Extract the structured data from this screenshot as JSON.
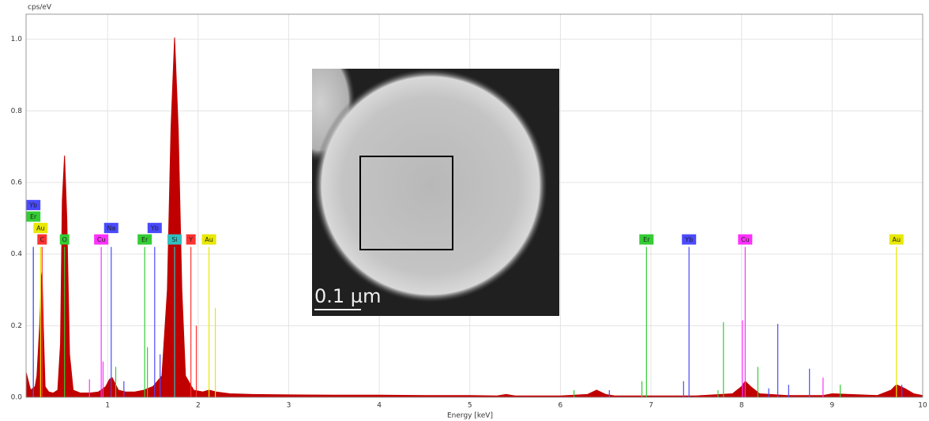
{
  "chart_data": {
    "type": "spectrum",
    "y_label": "cps/eV",
    "x_label": "Energy [keV]",
    "xlim": [
      0.1,
      10
    ],
    "ylim": [
      0,
      1.07
    ],
    "xticks": [
      1,
      2,
      3,
      4,
      5,
      6,
      7,
      8,
      9,
      10
    ],
    "yticks": [
      {
        "value": 0,
        "label": "0.0"
      },
      {
        "value": 0.2,
        "label": "0.2"
      },
      {
        "value": 0.4,
        "label": "0.4"
      },
      {
        "value": 0.6,
        "label": "0.6"
      },
      {
        "value": 0.8,
        "label": "0.8"
      },
      {
        "value": 1,
        "label": "1.0"
      }
    ],
    "grid": true,
    "spectrum": {
      "color": "#c00000",
      "x": [
        0.1,
        0.15,
        0.2,
        0.22,
        0.25,
        0.27,
        0.277,
        0.29,
        0.31,
        0.35,
        0.4,
        0.45,
        0.48,
        0.5,
        0.525,
        0.55,
        0.58,
        0.62,
        0.7,
        0.8,
        0.9,
        0.98,
        1.02,
        1.05,
        1.08,
        1.12,
        1.2,
        1.3,
        1.4,
        1.5,
        1.6,
        1.66,
        1.7,
        1.74,
        1.78,
        1.82,
        1.86,
        1.95,
        2.05,
        2.12,
        2.2,
        2.35,
        2.6,
        3.0,
        3.5,
        4.0,
        4.5,
        5.0,
        5.3,
        5.4,
        5.5,
        6.0,
        6.3,
        6.4,
        6.5,
        6.6,
        7.0,
        7.5,
        7.9,
        8.0,
        8.04,
        8.1,
        8.2,
        8.5,
        8.9,
        9.0,
        9.5,
        9.65,
        9.71,
        9.8,
        9.9,
        10
      ],
      "values": [
        0.07,
        0.02,
        0.03,
        0.06,
        0.2,
        0.34,
        0.35,
        0.2,
        0.03,
        0.015,
        0.012,
        0.02,
        0.15,
        0.55,
        0.675,
        0.5,
        0.12,
        0.02,
        0.012,
        0.012,
        0.015,
        0.03,
        0.05,
        0.055,
        0.04,
        0.02,
        0.015,
        0.015,
        0.02,
        0.03,
        0.06,
        0.3,
        0.75,
        1.005,
        0.75,
        0.3,
        0.06,
        0.02,
        0.015,
        0.02,
        0.015,
        0.01,
        0.008,
        0.007,
        0.006,
        0.006,
        0.005,
        0.005,
        0.004,
        0.008,
        0.004,
        0.004,
        0.008,
        0.02,
        0.008,
        0.004,
        0.004,
        0.004,
        0.01,
        0.03,
        0.045,
        0.03,
        0.01,
        0.005,
        0.005,
        0.01,
        0.005,
        0.02,
        0.035,
        0.025,
        0.01,
        0.005
      ]
    },
    "element_lines": [
      {
        "element": "C",
        "energy": 0.277,
        "height": 0.42,
        "color": "#ff3030"
      },
      {
        "element": "O",
        "energy": 0.525,
        "height": 0.42,
        "color": "#33cc33"
      },
      {
        "element": "Cu",
        "energy": 0.93,
        "height": 0.42,
        "color": "#ff30ff"
      },
      {
        "element": "Na",
        "energy": 1.04,
        "height": 0.42,
        "color": "#4a4aff"
      },
      {
        "element": "Er",
        "energy": 1.41,
        "height": 0.42,
        "color": "#33cc33"
      },
      {
        "element": "Yb",
        "energy": 1.52,
        "height": 0.42,
        "color": "#4a4aff"
      },
      {
        "element": "Si",
        "energy": 1.74,
        "height": 0.42,
        "color": "#30c0c0"
      },
      {
        "element": "Y",
        "energy": 1.92,
        "height": 0.42,
        "color": "#ff3030"
      },
      {
        "element": "Au",
        "energy": 2.12,
        "height": 0.42,
        "color": "#e8e800"
      },
      {
        "element": "Au",
        "energy": 0.26,
        "height": 0.42,
        "color": "#e8e800"
      },
      {
        "element": "Er",
        "energy": 0.18,
        "height": 0.42,
        "color": "#33cc33"
      },
      {
        "element": "Yb",
        "energy": 0.18,
        "height": 0.42,
        "color": "#4a4aff"
      },
      {
        "element": "Er",
        "energy": 6.95,
        "height": 0.42,
        "color": "#33cc33"
      },
      {
        "element": "Yb",
        "energy": 7.42,
        "height": 0.42,
        "color": "#4a4aff"
      },
      {
        "element": "Cu",
        "energy": 8.04,
        "height": 0.42,
        "color": "#ff30ff"
      },
      {
        "element": "Au",
        "energy": 9.71,
        "height": 0.42,
        "color": "#e8e800"
      }
    ],
    "minor_lines": [
      {
        "energy": 0.8,
        "height": 0.05,
        "color": "#ff30ff"
      },
      {
        "energy": 0.95,
        "height": 0.1,
        "color": "#ff30ff"
      },
      {
        "energy": 1.09,
        "height": 0.085,
        "color": "#33cc33"
      },
      {
        "energy": 1.18,
        "height": 0.045,
        "color": "#4a4aff"
      },
      {
        "energy": 1.44,
        "height": 0.14,
        "color": "#33cc33"
      },
      {
        "energy": 1.58,
        "height": 0.12,
        "color": "#4a4aff"
      },
      {
        "energy": 1.98,
        "height": 0.2,
        "color": "#ff3030"
      },
      {
        "energy": 2.19,
        "height": 0.25,
        "color": "#e8e800"
      },
      {
        "energy": 6.15,
        "height": 0.02,
        "color": "#33cc33"
      },
      {
        "energy": 6.54,
        "height": 0.02,
        "color": "#4a4aff"
      },
      {
        "energy": 6.9,
        "height": 0.045,
        "color": "#33cc33"
      },
      {
        "energy": 7.36,
        "height": 0.045,
        "color": "#4a4aff"
      },
      {
        "energy": 7.74,
        "height": 0.02,
        "color": "#33cc33"
      },
      {
        "energy": 7.8,
        "height": 0.21,
        "color": "#33cc33"
      },
      {
        "energy": 8.01,
        "height": 0.215,
        "color": "#ff30ff"
      },
      {
        "energy": 8.18,
        "height": 0.085,
        "color": "#33cc33"
      },
      {
        "energy": 8.3,
        "height": 0.025,
        "color": "#4a4aff"
      },
      {
        "energy": 8.4,
        "height": 0.205,
        "color": "#4a4aff"
      },
      {
        "energy": 8.52,
        "height": 0.035,
        "color": "#4a4aff"
      },
      {
        "energy": 8.75,
        "height": 0.08,
        "color": "#4a4aff"
      },
      {
        "energy": 8.9,
        "height": 0.055,
        "color": "#ff30ff"
      },
      {
        "energy": 9.09,
        "height": 0.035,
        "color": "#33cc33"
      },
      {
        "energy": 9.77,
        "height": 0.035,
        "color": "#4a4aff"
      }
    ]
  },
  "inset": {
    "scale_bar": "0.1 µm"
  }
}
